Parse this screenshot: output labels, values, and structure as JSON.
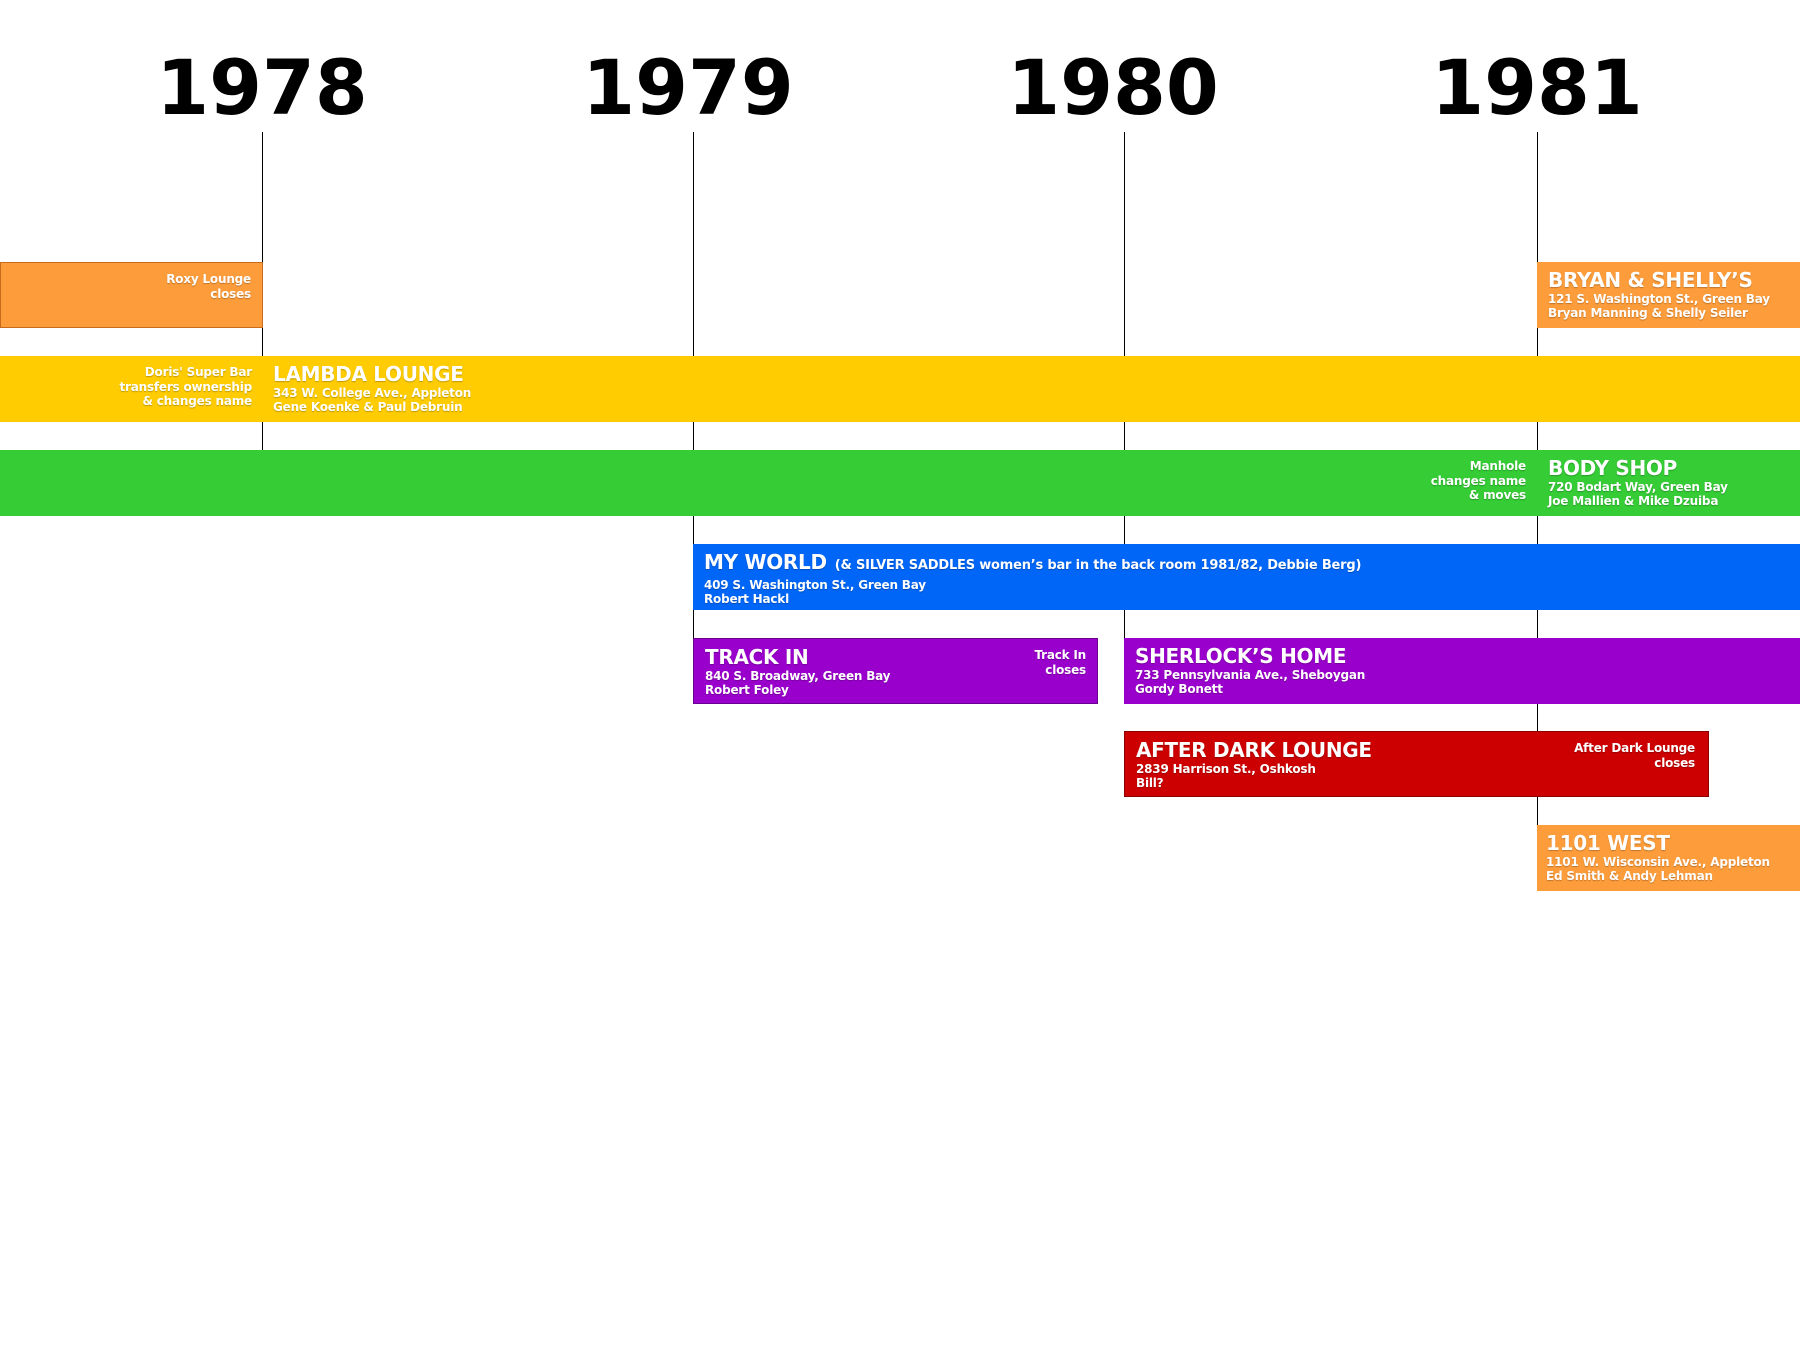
{
  "years": [
    "1978",
    "1979",
    "1980",
    "1981"
  ],
  "colors": {
    "orange": "#fd9c3a",
    "yellow": "#fecc00",
    "green": "#35cc35",
    "blue": "#0066f7",
    "purple": "#9a00cc",
    "red": "#cc0000"
  },
  "events": {
    "roxy": [
      "Roxy Lounge",
      "closes"
    ],
    "doris": [
      "Doris' Super Bar",
      "transfers ownership",
      "& changes name"
    ],
    "manhole": [
      "Manhole",
      "changes name",
      "& moves"
    ],
    "track_in": [
      "Track In",
      "closes"
    ],
    "after_dark": [
      "After Dark Lounge",
      "closes"
    ]
  },
  "venues": {
    "bryan_shelly": {
      "name": "BRYAN & SHELLY’S",
      "address": "121 S. Washington St., Green Bay",
      "owners": "Bryan Manning & Shelly Seiler"
    },
    "lambda_lounge": {
      "name": "LAMBDA LOUNGE",
      "address": "343 W. College Ave., Appleton",
      "owners": "Gene Koenke & Paul Debruin"
    },
    "body_shop": {
      "name": "BODY SHOP",
      "address": "720 Bodart Way, Green Bay",
      "owners": "Joe Mallien & Mike Dzuiba"
    },
    "my_world": {
      "name": "MY WORLD",
      "note": "(& SILVER SADDLES women’s bar in the back room 1981/82, Debbie Berg)",
      "address": "409 S. Washington St., Green Bay",
      "owners": "Robert Hackl"
    },
    "track_in": {
      "name": "TRACK IN",
      "address": "840 S. Broadway, Green Bay",
      "owners": "Robert Foley"
    },
    "sherlocks_home": {
      "name": "SHERLOCK’S HOME",
      "address": "733 Pennsylvania Ave., Sheboygan",
      "owners": "Gordy Bonett"
    },
    "after_dark": {
      "name": "AFTER DARK LOUNGE",
      "address": "2839 Harrison St., Oshkosh",
      "owners": "Bill?"
    },
    "west_1101": {
      "name": "1101 WEST",
      "address": "1101 W. Wisconsin Ave., Appleton",
      "owners": "Ed Smith & Andy Lehman"
    }
  }
}
